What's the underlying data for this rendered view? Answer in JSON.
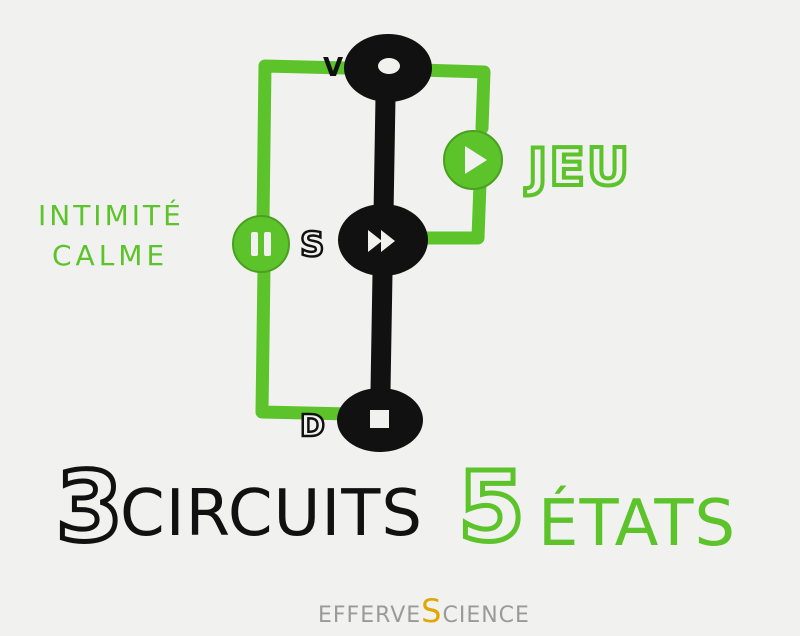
{
  "colors": {
    "green": "#5cc32a",
    "green_light": "#8bd65a",
    "black": "#111111",
    "paper": "#f1f1ef",
    "watermark": "#9a9a9a",
    "watermark_accent": "#e0a800"
  },
  "diagram": {
    "nodes": {
      "v": {
        "label": "V",
        "symbol": "circle"
      },
      "s": {
        "label": "S",
        "symbol": "fast-forward"
      },
      "d": {
        "label": "D",
        "symbol": "stop-square"
      }
    },
    "left_branch": {
      "label_line1": "Intimité",
      "label_line2": "calme",
      "symbol": "pause"
    },
    "right_branch": {
      "label": "Jeu",
      "symbol": "play"
    }
  },
  "headline": {
    "left_number": "3",
    "left_word": "circuits",
    "right_number": "5",
    "right_word": "états"
  },
  "watermark": {
    "part1": "Efferve",
    "part2": "S",
    "part3": "cience"
  }
}
